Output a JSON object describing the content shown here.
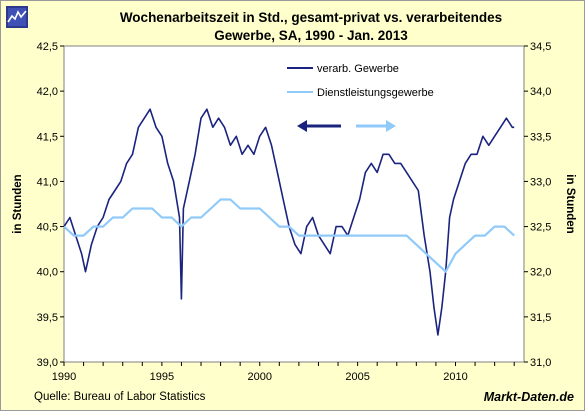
{
  "header": {
    "title_line1": "Wochenarbeitszeit in Std., gesamt-privat vs. verarbeitendes",
    "title_line2": "Gewerbe, SA, 1990 - Jan. 2013"
  },
  "footer": {
    "source": "Quelle: Bureau of Labor Statistics",
    "brand": "Markt-Daten.de"
  },
  "colors": {
    "background": "#ffffcc",
    "plot_background": "#ffffff",
    "gewerbe": "#1a237e",
    "dienst": "#90caf9"
  },
  "chart_data": {
    "type": "line",
    "x_ticks": [
      "1990",
      "1995",
      "2000",
      "2005",
      "2010"
    ],
    "y_left_label": "in Stunden",
    "y_right_label": "in Stunden",
    "y_left_range": [
      39.0,
      42.5
    ],
    "y_right_range": [
      31.0,
      34.5
    ],
    "y_left_ticks": [
      "42,5",
      "42,0",
      "41,5",
      "41,0",
      "40,5",
      "40,0",
      "39,5",
      "39,0"
    ],
    "y_right_ticks": [
      "34,5",
      "34,0",
      "33,5",
      "33,0",
      "32,5",
      "32,0",
      "31,5",
      "31,0"
    ],
    "x_range": [
      1990,
      2013.5
    ],
    "grid": false,
    "legend_position": "top-right",
    "series": [
      {
        "name": "verarb. Gewerbe",
        "axis": "left",
        "x": [
          1990.0,
          1990.3,
          1990.6,
          1990.9,
          1991.1,
          1991.4,
          1991.7,
          1992.0,
          1992.3,
          1992.6,
          1992.9,
          1993.2,
          1993.5,
          1993.8,
          1994.1,
          1994.4,
          1994.7,
          1995.0,
          1995.3,
          1995.6,
          1995.9,
          1996.0,
          1996.1,
          1996.4,
          1996.7,
          1997.0,
          1997.3,
          1997.6,
          1997.9,
          1998.2,
          1998.5,
          1998.8,
          1999.1,
          1999.4,
          1999.7,
          2000.0,
          2000.3,
          2000.6,
          2000.9,
          2001.2,
          2001.5,
          2001.8,
          2002.1,
          2002.4,
          2002.7,
          2003.0,
          2003.3,
          2003.6,
          2003.9,
          2004.2,
          2004.5,
          2004.8,
          2005.1,
          2005.4,
          2005.7,
          2006.0,
          2006.3,
          2006.6,
          2006.9,
          2007.2,
          2007.5,
          2007.8,
          2008.1,
          2008.4,
          2008.7,
          2008.9,
          2009.1,
          2009.3,
          2009.5,
          2009.7,
          2009.9,
          2010.2,
          2010.5,
          2010.8,
          2011.1,
          2011.4,
          2011.7,
          2012.0,
          2012.3,
          2012.6,
          2012.9,
          2013.0
        ],
        "y": [
          40.5,
          40.6,
          40.4,
          40.2,
          40.0,
          40.3,
          40.5,
          40.6,
          40.8,
          40.9,
          41.0,
          41.2,
          41.3,
          41.6,
          41.7,
          41.8,
          41.6,
          41.5,
          41.2,
          41.0,
          40.6,
          39.7,
          40.7,
          41.0,
          41.3,
          41.7,
          41.8,
          41.6,
          41.7,
          41.6,
          41.4,
          41.5,
          41.3,
          41.4,
          41.3,
          41.5,
          41.6,
          41.4,
          41.1,
          40.8,
          40.5,
          40.3,
          40.2,
          40.5,
          40.6,
          40.4,
          40.3,
          40.2,
          40.5,
          40.5,
          40.4,
          40.6,
          40.8,
          41.1,
          41.2,
          41.1,
          41.3,
          41.3,
          41.2,
          41.2,
          41.1,
          41.0,
          40.9,
          40.4,
          40.0,
          39.6,
          39.3,
          39.6,
          40.0,
          40.6,
          40.8,
          41.0,
          41.2,
          41.3,
          41.3,
          41.5,
          41.4,
          41.5,
          41.6,
          41.7,
          41.6,
          41.6
        ]
      },
      {
        "name": "Dienstleistungsgewerbe",
        "axis": "right",
        "x": [
          1990.0,
          1990.5,
          1991.0,
          1991.5,
          1992.0,
          1992.5,
          1993.0,
          1993.5,
          1994.0,
          1994.5,
          1995.0,
          1995.5,
          1996.0,
          1996.5,
          1997.0,
          1997.5,
          1998.0,
          1998.5,
          1999.0,
          1999.5,
          2000.0,
          2000.5,
          2001.0,
          2001.5,
          2002.0,
          2002.5,
          2003.0,
          2003.5,
          2004.0,
          2004.5,
          2005.0,
          2005.5,
          2006.0,
          2006.5,
          2007.0,
          2007.5,
          2008.0,
          2008.5,
          2009.0,
          2009.5,
          2010.0,
          2010.5,
          2011.0,
          2011.5,
          2012.0,
          2012.5,
          2013.0
        ],
        "y": [
          32.5,
          32.4,
          32.4,
          32.5,
          32.5,
          32.6,
          32.6,
          32.7,
          32.7,
          32.7,
          32.6,
          32.6,
          32.5,
          32.6,
          32.6,
          32.7,
          32.8,
          32.8,
          32.7,
          32.7,
          32.7,
          32.6,
          32.5,
          32.5,
          32.4,
          32.4,
          32.4,
          32.4,
          32.4,
          32.4,
          32.4,
          32.4,
          32.4,
          32.4,
          32.4,
          32.4,
          32.3,
          32.2,
          32.1,
          32.0,
          32.2,
          32.3,
          32.4,
          32.4,
          32.5,
          32.5,
          32.4
        ]
      }
    ]
  }
}
